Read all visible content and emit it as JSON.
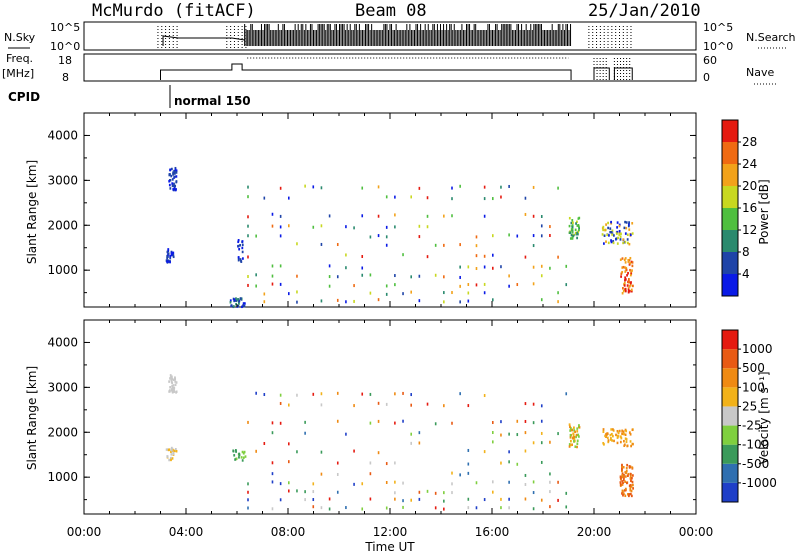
{
  "header": {
    "title_left": "McMurdo (fitACF)",
    "title_center": "Beam 08",
    "title_right": "25/Jan/2010"
  },
  "panels": {
    "nsky": {
      "label": "N.Sky",
      "ticks": [
        "10^5",
        "10^0"
      ],
      "right_label": "N.Search",
      "right_ticks": [
        "10^5",
        "10^0"
      ]
    },
    "freq": {
      "label_line1": "Freq.",
      "label_line2": "[MHz]",
      "ticks": [
        "18",
        "8"
      ],
      "right_label": "Nave",
      "right_ticks": [
        "60",
        "0"
      ]
    },
    "cpid": {
      "label": "CPID",
      "mode_label": "normal 150"
    }
  },
  "time_axis": {
    "label": "Time UT",
    "ticks": [
      "00:00",
      "04:00",
      "08:00",
      "12:00",
      "16:00",
      "20:00",
      "00:00"
    ]
  },
  "power_panel": {
    "ylabel": "Slant Range [km]",
    "yticks": [
      "4000",
      "3000",
      "2000",
      "1000"
    ],
    "colorbar_label": "Power [dB]",
    "colorbar_ticks": [
      "28",
      "24",
      "20",
      "16",
      "12",
      "8",
      "4"
    ],
    "colors": [
      "#0a1ae6",
      "#1f44a8",
      "#2a8a6e",
      "#4fbf3f",
      "#c8d820",
      "#f2a21a",
      "#ef6a12",
      "#e51a10"
    ]
  },
  "velocity_panel": {
    "ylabel": "Slant Range [km]",
    "yticks": [
      "4000",
      "3000",
      "2000",
      "1000"
    ],
    "colorbar_label": "Velocity [m s⁻¹]",
    "colorbar_ticks": [
      "1000",
      "500",
      "100",
      "25",
      "-25",
      "-100",
      "-500",
      "-1000"
    ],
    "colors": [
      "#1f3fc8",
      "#2f6fb0",
      "#3a9a5a",
      "#7fcf3f",
      "#c8c8c8",
      "#f2b21a",
      "#ef8a12",
      "#e85a14",
      "#e51a10"
    ]
  },
  "chart_data": [
    {
      "type": "heatmap",
      "name": "Power",
      "xlabel": "Time UT",
      "ylabel": "Slant Range [km]",
      "xlim_hours": [
        0,
        24
      ],
      "ylim_km": [
        180,
        4500
      ],
      "colorbar": {
        "label": "Power [dB]",
        "range": [
          0,
          32
        ]
      },
      "x_hours_sampled": [
        3.2,
        3.3,
        3.4,
        5.8,
        6.1,
        7.5,
        8.3,
        9.1,
        10.4,
        11.6,
        12.5,
        13.4,
        14.3,
        15.2,
        16.3,
        17.1,
        18.2,
        19.3,
        20.3,
        21.0
      ]
    },
    {
      "type": "heatmap",
      "name": "Velocity",
      "xlabel": "Time UT",
      "ylabel": "Slant Range [km]",
      "xlim_hours": [
        0,
        24
      ],
      "ylim_km": [
        180,
        4500
      ],
      "colorbar": {
        "label": "Velocity [m s⁻¹]",
        "range": [
          -1000,
          1000
        ]
      },
      "x_hours_sampled": [
        3.2,
        3.3,
        3.4,
        5.8,
        6.1,
        7.5,
        8.3,
        9.1,
        10.4,
        11.6,
        12.5,
        13.4,
        14.3,
        15.2,
        16.3,
        17.1,
        18.2,
        19.3,
        20.3,
        21.0
      ]
    }
  ]
}
